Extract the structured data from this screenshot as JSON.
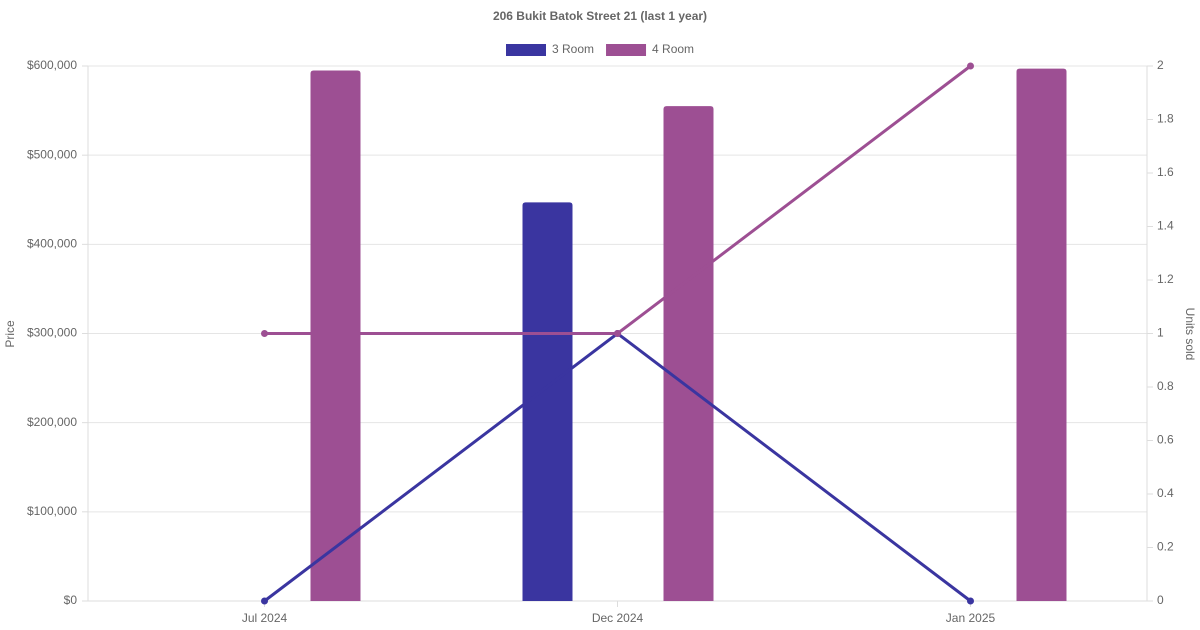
{
  "chart_data": {
    "type": "bar-line",
    "title": "206 Bukit Batok Street 21 (last 1 year)",
    "y_label": "Price",
    "y2_label": "Units sold",
    "categories": [
      "Jul 2024",
      "Dec 2024",
      "Jan 2025"
    ],
    "series": [
      {
        "name": "3 Room",
        "color": "#3a35a0",
        "values": [
          null,
          447000,
          null
        ],
        "units_sold": [
          0,
          1,
          0
        ]
      },
      {
        "name": "4 Room",
        "color": "#9d4f93",
        "values": [
          595000,
          555000,
          597000
        ],
        "units_sold": [
          1,
          1,
          2
        ]
      }
    ],
    "ylim": [
      0,
      600000
    ],
    "yticks": [
      {
        "value": 0,
        "label": "$0"
      },
      {
        "value": 100000,
        "label": "$100,000"
      },
      {
        "value": 200000,
        "label": "$200,000"
      },
      {
        "value": 300000,
        "label": "$300,000"
      },
      {
        "value": 400000,
        "label": "$400,000"
      },
      {
        "value": 500000,
        "label": "$500,000"
      },
      {
        "value": 600000,
        "label": "$600,000"
      }
    ],
    "y2lim": [
      0,
      2
    ],
    "y2ticks": [
      0,
      0.2,
      0.4,
      0.6,
      0.8,
      1,
      1.2,
      1.4,
      1.6,
      1.8,
      2
    ],
    "grid": true
  }
}
